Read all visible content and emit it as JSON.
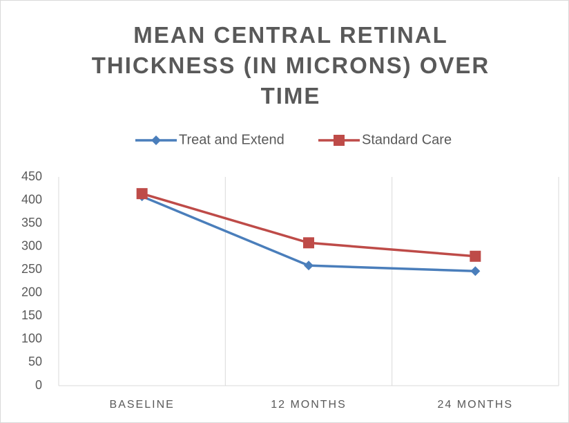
{
  "chart_data": {
    "type": "line",
    "title": "MEAN CENTRAL RETINAL THICKNESS (IN MICRONS) OVER TIME",
    "categories": [
      "BASELINE",
      "12 MONTHS",
      "24 MONTHS"
    ],
    "series": [
      {
        "name": "Treat and Extend",
        "color": "#4a7ebb",
        "marker": "diamond",
        "values": [
          408,
          259,
          247
        ]
      },
      {
        "name": "Standard Care",
        "color": "#be4b48",
        "marker": "square",
        "values": [
          414,
          308,
          279
        ]
      }
    ],
    "ylim": [
      0,
      450
    ],
    "yticks": [
      0,
      50,
      100,
      150,
      200,
      250,
      300,
      350,
      400,
      450
    ],
    "legend": "top"
  }
}
